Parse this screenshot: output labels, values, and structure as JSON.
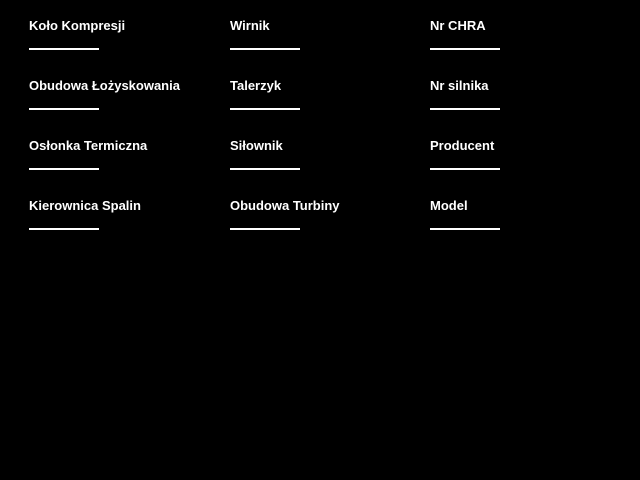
{
  "app": {
    "background_color": "#000000",
    "text_color": "#ffffff",
    "underline_color": "#ffffff"
  },
  "form": {
    "columns": [
      {
        "fields": [
          {
            "label": "Koło Kompresji",
            "value": ""
          },
          {
            "label": "Obudowa Łożyskowania",
            "value": ""
          },
          {
            "label": "Osłonka Termiczna",
            "value": ""
          },
          {
            "label": "Kierownica Spalin",
            "value": ""
          }
        ]
      },
      {
        "fields": [
          {
            "label": "Wirnik",
            "value": ""
          },
          {
            "label": "Talerzyk",
            "value": ""
          },
          {
            "label": "Siłownik",
            "value": ""
          },
          {
            "label": "Obudowa Turbiny",
            "value": ""
          }
        ]
      },
      {
        "fields": [
          {
            "label": "Nr CHRA",
            "value": ""
          },
          {
            "label": "Nr silnika",
            "value": ""
          },
          {
            "label": "Producent",
            "value": ""
          },
          {
            "label": "Model",
            "value": ""
          }
        ]
      }
    ]
  }
}
